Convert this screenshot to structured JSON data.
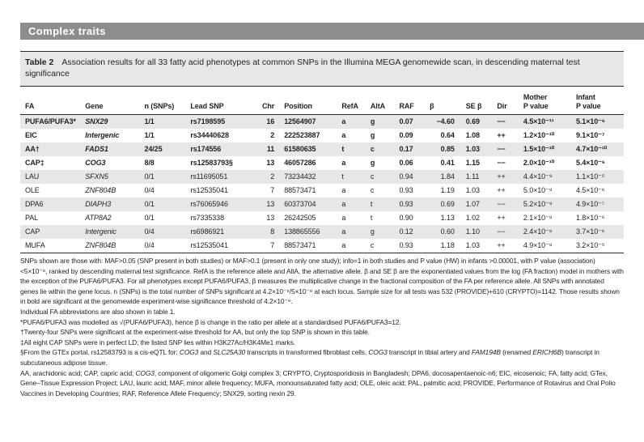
{
  "colors": {
    "banner-bg": "#8b8d8f",
    "banner-fg": "#ffffff",
    "stripe-bg": "#e6e7e8",
    "ink": "#231f20",
    "rule": "#2b2b2b"
  },
  "section": {
    "title": "Complex traits"
  },
  "table": {
    "label": "Table 2",
    "caption": "Association results for all 33 fatty acid phenotypes at common SNPs in the Illumina MEGA genomewide scan, in descending maternal test significance",
    "columns": [
      {
        "key": "fa",
        "label": "FA"
      },
      {
        "key": "gene",
        "label": "Gene"
      },
      {
        "key": "nsnps",
        "label": "n (SNPs)"
      },
      {
        "key": "leadsnp",
        "label": "Lead SNP"
      },
      {
        "key": "chr",
        "label": "Chr"
      },
      {
        "key": "position",
        "label": "Position"
      },
      {
        "key": "refa",
        "label": "RefA"
      },
      {
        "key": "alta",
        "label": "AltA"
      },
      {
        "key": "raf",
        "label": "RAF"
      },
      {
        "key": "beta",
        "label": "β"
      },
      {
        "key": "sebeta",
        "label": "SE β"
      },
      {
        "key": "dir",
        "label": "Dir"
      },
      {
        "key": "motherp",
        "label": "Mother\nP value"
      },
      {
        "key": "infantp",
        "label": "Infant\nP value"
      }
    ],
    "rows": [
      {
        "bold": true,
        "cells": [
          "PUFA6/PUFA3*",
          "SNX29",
          "1/1",
          "rs7198595",
          "16",
          "12564907",
          "a",
          "g",
          "0.07",
          "−4.60",
          "0.69",
          "−−",
          "4.5×10⁻¹¹",
          "5.1×10⁻⁶"
        ]
      },
      {
        "bold": true,
        "cells": [
          "EIC",
          "Intergenic",
          "1/1",
          "rs34440628",
          "2",
          "222523887",
          "a",
          "g",
          "0.09",
          "0.64",
          "1.08",
          "++",
          "1.2×10⁻¹⁰",
          "9.1×10⁻⁷"
        ]
      },
      {
        "bold": true,
        "cells": [
          "AA†",
          "FADS1",
          "24/25",
          "rs174556",
          "11",
          "61580635",
          "t",
          "c",
          "0.17",
          "0.85",
          "1.03",
          "−−",
          "1.5×10⁻¹⁰",
          "4.7×10⁻¹⁰"
        ]
      },
      {
        "bold": true,
        "cells": [
          "CAP‡",
          "COG3",
          "8/8",
          "rs12583793§",
          "13",
          "46057286",
          "a",
          "g",
          "0.06",
          "0.41",
          "1.15",
          "−−",
          "2.0×10⁻¹⁰",
          "5.4×10⁻⁶"
        ]
      },
      {
        "bold": false,
        "cells": [
          "LAU",
          "SFXN5",
          "0/1",
          "rs11695051",
          "2",
          "73234432",
          "t",
          "c",
          "0.94",
          "1.84",
          "1.11",
          "++",
          "4.4×10⁻⁹",
          "1.1×10⁻⁵"
        ]
      },
      {
        "bold": false,
        "cells": [
          "OLE",
          "ZNF804B",
          "0/4",
          "rs12535041",
          "7",
          "88573471",
          "a",
          "c",
          "0.93",
          "1.19",
          "1.03",
          "++",
          "5.0×10⁻⁹",
          "4.5×10⁻⁶"
        ]
      },
      {
        "bold": false,
        "cells": [
          "DPA6",
          "DIAPH3",
          "0/1",
          "rs76065946",
          "13",
          "60373704",
          "a",
          "t",
          "0.93",
          "0.69",
          "1.07",
          "−−",
          "5.2×10⁻⁹",
          "4.9×10⁻⁷"
        ]
      },
      {
        "bold": false,
        "cells": [
          "PAL",
          "ATP8A2",
          "0/1",
          "rs7335338",
          "13",
          "26242505",
          "a",
          "t",
          "0.90",
          "1.13",
          "1.02",
          "++",
          "2.1×10⁻⁸",
          "1.8×10⁻⁶"
        ]
      },
      {
        "bold": false,
        "cells": [
          "CAP",
          "Intergenic",
          "0/4",
          "rs6986921",
          "8",
          "138865556",
          "a",
          "g",
          "0.12",
          "0.60",
          "1.10",
          "−−",
          "2.4×10⁻⁸",
          "3.7×10⁻⁶"
        ]
      },
      {
        "bold": false,
        "cells": [
          "MUFA",
          "ZNF804B",
          "0/4",
          "rs12535041",
          "7",
          "88573471",
          "a",
          "c",
          "0.93",
          "1.18",
          "1.03",
          "++",
          "4.9×10⁻⁸",
          "3.2×10⁻⁵"
        ]
      }
    ]
  },
  "footnotes": [
    [
      {
        "t": "SNPs shown are those with: MAF>0.05 (SNP present in both studies) or MAF>0.1 (present in only one study); info=1 in both studies and P value (HW) in infants >0.00001, with P value (association) <5×10⁻⁸, ranked by descending maternal test significance. RefA is the reference allele and AltA, the alternative allele. β and SE β are the exponentiated values from the log (FA fraction) model in mothers with the exception of the PUFA6/PUFA3. For all phenotypes except PUFA6/PUFA3, β measures the multiplicative change in the fractional composition of the FA per reference allele. All SNPs with annotated genes lie within the gene locus. n (SNPs) is the total number of SNPs significant at 4.2×10⁻⁹/5×10⁻⁸ at each locus. Sample size for all tests was 532 (PROVIDE)+610 (CRYPTO)=1142. Those results shown in bold are significant at the genomewide experiment-wise significance threshold of 4.2×10⁻⁹."
      }
    ],
    [
      {
        "t": "Individual FA abbreviations are also shown in table 1."
      }
    ],
    [
      {
        "t": "*PUFA6/PUFA3 was modelled as √(PUFA6/PUFA3), hence β is change in the ratio per allele at a standardised PUFA6/PUFA3=12."
      }
    ],
    [
      {
        "t": "†Twenty-four SNPs were significant at the experiment-wise threshold for AA, but only the top SNP is shown in this table."
      }
    ],
    [
      {
        "t": "‡All eight CAP SNPs were in perfect LD; the listed SNP lies within H3K27Ac/H3K4Me1 marks."
      }
    ],
    [
      {
        "t": "§From the GTEx portal, rs12583793 is a cis-eQTL for: "
      },
      {
        "t": "COG3",
        "i": true
      },
      {
        "t": " and "
      },
      {
        "t": "SLC25A30",
        "i": true
      },
      {
        "t": " transcripts in transformed fibroblast cells, "
      },
      {
        "t": "COG3",
        "i": true
      },
      {
        "t": " transcript in tibial artery and "
      },
      {
        "t": "FAM194B",
        "i": true
      },
      {
        "t": " (renamed "
      },
      {
        "t": "ERICH6B",
        "i": true
      },
      {
        "t": ") transcript in subcutaneous adipose tissue."
      }
    ],
    [
      {
        "t": "AA, arachidonic acid; CAP, capric acid; "
      },
      {
        "t": "COG3",
        "i": true
      },
      {
        "t": ", component of oligomeric Golgi complex 3; CRYPTO, Cryptosporidiosis in Bangladesh; DPA6, docosapentaenoic-n6; EIC, eicosenoic; FA, fatty acid; GTex, Gene–Tissue Expression Project; LAU, lauric acid; MAF, minor allele frequency; MUFA, monounsaturated fatty acid; OLE, oleic acid; PAL, palmitic acid; PROVIDE, Performance of Rotavirus and Oral Polio Vaccines in Developing Countries; RAF,  Reference Allele Frequency; SNX29, sorting nexin 29."
      }
    ]
  ]
}
